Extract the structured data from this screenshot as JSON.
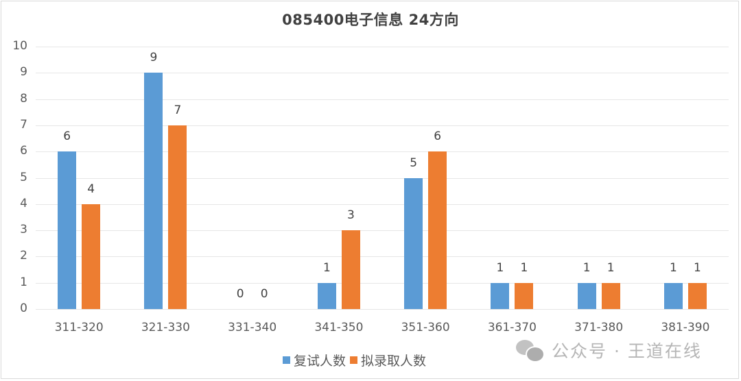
{
  "chart": {
    "title": "085400电子信息 24方向",
    "y_ticks": [
      "0",
      "1",
      "2",
      "3",
      "4",
      "5",
      "6",
      "7",
      "8",
      "9",
      "10"
    ],
    "legend": [
      {
        "label": "复试人数",
        "color": "#5b9bd5"
      },
      {
        "label": "拟录取人数",
        "color": "#ed7d31"
      }
    ]
  },
  "watermark": {
    "icon": "wechat-icon",
    "text": "公众号 · 王道在线"
  },
  "chart_data": {
    "type": "bar",
    "title": "085400电子信息 24方向",
    "xlabel": "",
    "ylabel": "",
    "ylim": [
      0,
      10
    ],
    "grid": true,
    "legend_position": "bottom",
    "categories": [
      "311-320",
      "321-330",
      "331-340",
      "341-350",
      "351-360",
      "361-370",
      "371-380",
      "381-390"
    ],
    "series": [
      {
        "name": "复试人数",
        "color": "#5b9bd5",
        "values": [
          6,
          9,
          0,
          1,
          5,
          1,
          1,
          1
        ]
      },
      {
        "name": "拟录取人数",
        "color": "#ed7d31",
        "values": [
          4,
          7,
          0,
          3,
          6,
          1,
          1,
          1
        ]
      }
    ]
  }
}
